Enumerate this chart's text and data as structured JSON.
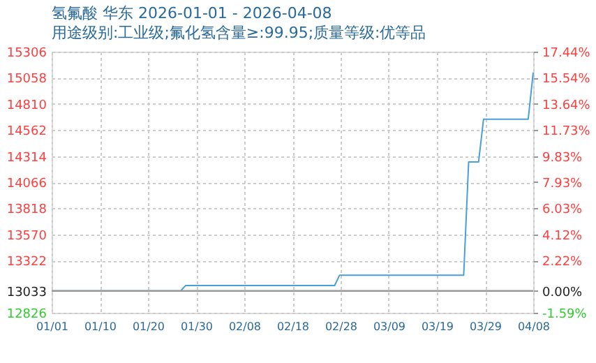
{
  "chart_data": {
    "type": "line",
    "title": "氢氟酸 华东 2026-01-01 - 2026-04-08",
    "subtitle": "用途级别:工业级;氟化氢含量≥:99.95;质量等级:优等品",
    "x": [
      "2026-01-01",
      "2026-01-27",
      "2026-01-28",
      "2026-02-27",
      "2026-02-28",
      "2026-03-25",
      "2026-03-26",
      "2026-03-28",
      "2026-03-29",
      "2026-04-07",
      "2026-04-08"
    ],
    "series": [
      {
        "color": "#4a9fd8",
        "values": [
          13033,
          13033,
          13085,
          13085,
          13183,
          13183,
          14259,
          14259,
          14665,
          14665,
          15108
        ]
      }
    ],
    "xlim": [
      "2026-01-01",
      "2026-04-08"
    ],
    "xticks": [
      {
        "value": "2026-01-01",
        "label": "01/01"
      },
      {
        "value": "2026-01-10T16:48",
        "label": "01/10"
      },
      {
        "value": "2026-01-20T09:36",
        "label": "01/20"
      },
      {
        "value": "2026-01-30T02:24",
        "label": "01/30"
      },
      {
        "value": "2026-02-08T19:12",
        "label": "02/08"
      },
      {
        "value": "2026-02-18T12:00",
        "label": "02/18"
      },
      {
        "value": "2026-02-28T04:48",
        "label": "02/28"
      },
      {
        "value": "2026-03-09T21:36",
        "label": "03/09"
      },
      {
        "value": "2026-03-19T14:24",
        "label": "03/19"
      },
      {
        "value": "2026-03-29T07:12",
        "label": "03/29"
      },
      {
        "value": "2026-04-08",
        "label": "04/08"
      }
    ],
    "ylim": [
      12826,
      15306
    ],
    "yticks": [
      12826,
      13033,
      13322,
      13570,
      13818,
      14066,
      14314,
      14562,
      14810,
      15058,
      15306
    ],
    "y2lim": [
      -1.59,
      17.44
    ],
    "y2ticks": [
      {
        "value": -1.59,
        "label": "-1.59%"
      },
      {
        "value": 0,
        "label": "0.00%"
      },
      {
        "value": 2.22,
        "label": "2.22%"
      },
      {
        "value": 4.12,
        "label": "4.12%"
      },
      {
        "value": 6.03,
        "label": "6.03%"
      },
      {
        "value": 7.93,
        "label": "7.93%"
      },
      {
        "value": 9.83,
        "label": "9.83%"
      },
      {
        "value": 11.73,
        "label": "11.73%"
      },
      {
        "value": 13.64,
        "label": "13.64%"
      },
      {
        "value": 15.54,
        "label": "15.54%"
      },
      {
        "value": 17.44,
        "label": "17.44%"
      }
    ],
    "ref_lines": [
      {
        "axis": "y",
        "value": 13033,
        "color": "#999999"
      }
    ],
    "grid": true,
    "legend": false,
    "marker": "none",
    "line_style": "solid"
  }
}
